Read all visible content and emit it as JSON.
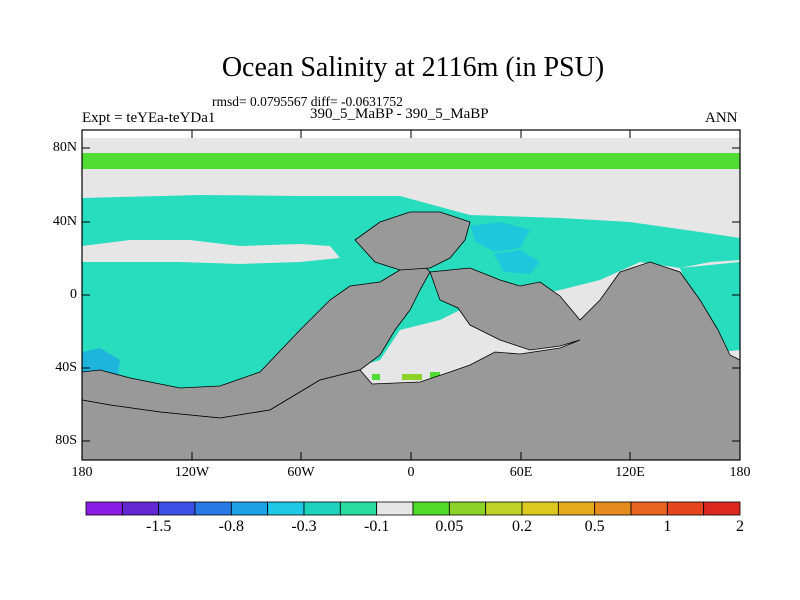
{
  "title": "Ocean Salinity at 2116m (in PSU)",
  "stats": "rmsd= 0.0795567 diff= -0.0631752",
  "left_label": "Expt = teYEa-teYDa1",
  "center_label": "390_5_MaBP - 390_5_MaBP",
  "right_label": "ANN",
  "lat_ticks": [
    "80N",
    "40N",
    "0",
    "40S",
    "80S"
  ],
  "lon_ticks": [
    "180",
    "120W",
    "60W",
    "0",
    "60E",
    "120E",
    "180"
  ],
  "colorbar": {
    "colors": [
      "#8a1ee6",
      "#6428d2",
      "#3c50e6",
      "#2878e6",
      "#1ea0e6",
      "#1ec8e6",
      "#1ed2be",
      "#28dca0",
      "#e6e6e6",
      "#50dc28",
      "#8cd228",
      "#bed228",
      "#dcc81e",
      "#e6aa1e",
      "#e68c1e",
      "#e6641e",
      "#e6461e",
      "#dc281e"
    ],
    "tick_labels": [
      "-1.5",
      "-0.8",
      "-0.3",
      "-0.1",
      "0.05",
      "0.2",
      "0.5",
      "1",
      "2"
    ]
  },
  "palette": {
    "land": "#999999",
    "missing": "#e6e6e6",
    "cyan": "#28dcbe",
    "blue": "#1ec8dc",
    "green": "#50dc32",
    "frame": "#000000"
  }
}
